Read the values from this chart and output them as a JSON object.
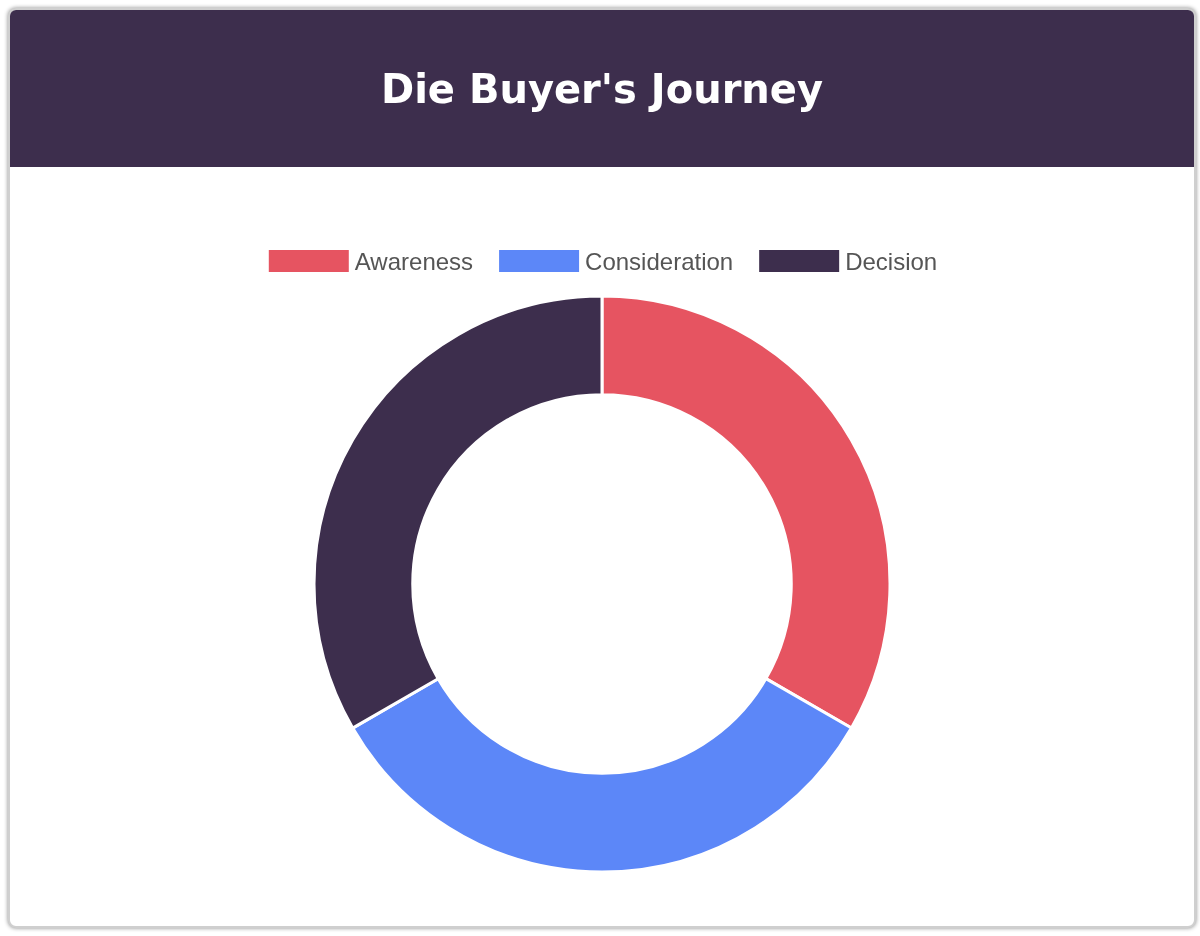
{
  "chart_data": {
    "type": "donut",
    "title": "Die Buyer's Journey",
    "categories": [
      "Awareness",
      "Consideration",
      "Decision"
    ],
    "values": [
      33.33,
      33.33,
      33.34
    ],
    "colors": [
      "#e65461",
      "#5c87f8",
      "#3d2e4d"
    ],
    "legend": "top"
  }
}
